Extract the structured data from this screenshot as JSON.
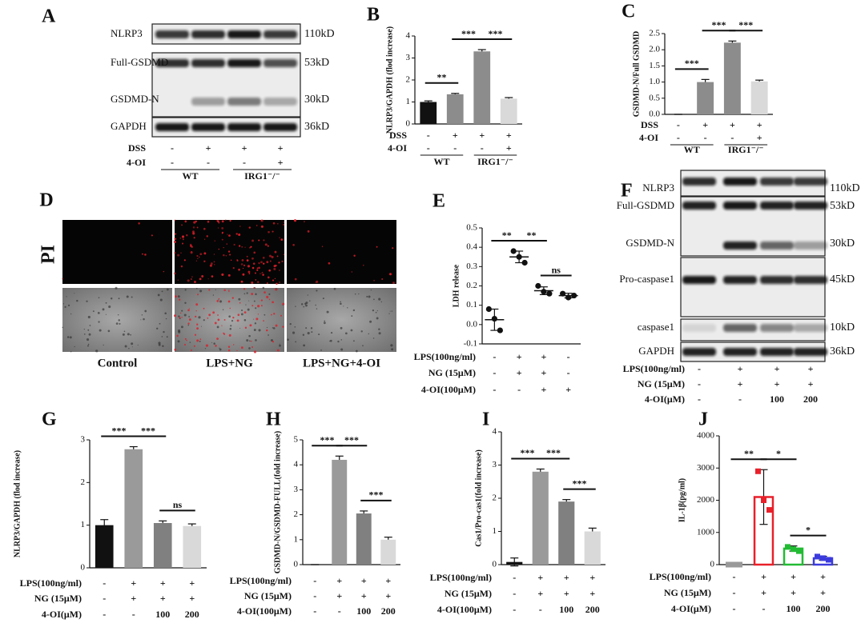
{
  "blots": [
    {
      "panel": "A",
      "bands": [
        {
          "name": "NLRP3",
          "size": "110kD"
        },
        {
          "name": "Full-GSDMD",
          "size": "53kD"
        },
        {
          "name": "GSDMD-N",
          "size": "30kD"
        },
        {
          "name": "GAPDH",
          "size": "36kD"
        }
      ],
      "treatments": [
        {
          "name": "DSS",
          "values": [
            "-",
            "+",
            "+",
            "+"
          ]
        },
        {
          "name": "4-OI",
          "values": [
            "-",
            "-",
            "-",
            "+"
          ]
        }
      ],
      "groups": [
        "WT",
        "IRG1⁻/⁻"
      ]
    },
    {
      "panel": "F",
      "bands": [
        {
          "name": "NLRP3",
          "size": "110kD"
        },
        {
          "name": "Full-GSDMD",
          "size": "53kD"
        },
        {
          "name": "GSDMD-N",
          "size": "30kD"
        },
        {
          "name": "Pro-caspase1",
          "size": "45kD"
        },
        {
          "name": "caspase1",
          "size": "10kD"
        },
        {
          "name": "GAPDH",
          "size": "36kD"
        }
      ],
      "treatments": [
        {
          "name": "LPS(100ng/ml)",
          "values": [
            "-",
            "+",
            "+",
            "+"
          ]
        },
        {
          "name": "NG (15μM)",
          "values": [
            "-",
            "+",
            "+",
            "+"
          ]
        },
        {
          "name": "4-OI(μM)",
          "values": [
            "-",
            "-",
            "100",
            "200"
          ]
        }
      ]
    }
  ],
  "micrographs": {
    "panel": "D",
    "stain": "PI",
    "captions": [
      "Control",
      "LPS+NG",
      "LPS+NG+4-OI"
    ]
  },
  "chart_data": [
    {
      "type": "bar",
      "panel": "B",
      "y_label": "NLRP3/GAPDH (flod increase)",
      "ylim": [
        0,
        4
      ],
      "yticks": [
        0,
        1,
        2,
        3,
        4
      ],
      "colors": [
        "#111111",
        "#8c8c8c",
        "#8c8c8c",
        "#d9d9d9"
      ],
      "values": [
        1.0,
        1.35,
        3.3,
        1.15
      ],
      "errors": [
        0.05,
        0.04,
        0.08,
        0.05
      ],
      "significance": [
        "**",
        "***",
        "***"
      ],
      "treatments": [
        {
          "name": "DSS",
          "values": [
            "-",
            "+",
            "+",
            "+"
          ]
        },
        {
          "name": "4-OI",
          "values": [
            "-",
            "-",
            "-",
            "+"
          ]
        }
      ],
      "groups": [
        "WT",
        "IRG1⁻/⁻"
      ]
    },
    {
      "type": "bar",
      "panel": "C",
      "y_label": "GSDMD-N/Full GSDMD",
      "ylim": [
        0,
        2.5
      ],
      "yticks": [
        {
          "value": 0,
          "label": "0.0"
        },
        0.5,
        {
          "value": 1,
          "label": "1.0"
        },
        1.5,
        {
          "value": 2,
          "label": "2.0"
        },
        2.5
      ],
      "colors": [
        "#111111",
        "#8c8c8c",
        "#8c8c8c",
        "#d9d9d9"
      ],
      "values": [
        0,
        1.0,
        2.22,
        1.02
      ],
      "errors": [
        0,
        0.08,
        0.05,
        0.04
      ],
      "significance": [
        "***",
        "***",
        "***"
      ],
      "treatments": [
        {
          "name": "DSS",
          "values": [
            "-",
            "+",
            "+",
            "+"
          ]
        },
        {
          "name": "4-OI",
          "values": [
            "-",
            "-",
            "-",
            "+"
          ]
        }
      ],
      "groups": [
        "WT",
        "IRG1⁻/⁻"
      ]
    },
    {
      "type": "dot",
      "panel": "E",
      "y_label": "LDH release",
      "ylim": [
        -0.1,
        0.5
      ],
      "yticks": [
        -0.1,
        {
          "value": 0,
          "label": "0.0"
        },
        0.1,
        0.2,
        0.3,
        0.4,
        0.5
      ],
      "colors": [
        "#111111",
        "#111111",
        "#111111",
        "#111111"
      ],
      "values": [
        0.025,
        0.35,
        0.175,
        0.15
      ],
      "errors": [
        0.055,
        0.03,
        0.02,
        0.012
      ],
      "points": [
        [
          0.08,
          0.03,
          -0.03
        ],
        [
          0.38,
          0.35,
          0.32
        ],
        [
          0.2,
          0.17,
          0.16
        ],
        [
          0.16,
          0.14,
          0.15
        ]
      ],
      "significance": [
        "**",
        "**",
        "ns"
      ],
      "treatments": [
        {
          "name": "LPS(100ng/ml)",
          "values": [
            "-",
            "+",
            "+",
            "-"
          ]
        },
        {
          "name": "NG (15μM)",
          "values": [
            "-",
            "+",
            "+",
            "-"
          ]
        },
        {
          "name": "4-OI(100μM)",
          "values": [
            "-",
            "-",
            "+",
            "+"
          ]
        }
      ]
    },
    {
      "type": "bar",
      "panel": "G",
      "y_label": "NLRP3/GAPDH (flod increase)",
      "ylim": [
        0,
        3
      ],
      "yticks": [
        0,
        1,
        2,
        3
      ],
      "colors": [
        "#111111",
        "#9a9a9a",
        "#808080",
        "#d9d9d9"
      ],
      "values": [
        1.0,
        2.78,
        1.05,
        0.98
      ],
      "errors": [
        0.13,
        0.06,
        0.05,
        0.05
      ],
      "significance": [
        "***",
        "***",
        "ns"
      ],
      "treatments": [
        {
          "name": "LPS(100ng/ml)",
          "values": [
            "-",
            "+",
            "+",
            "+"
          ]
        },
        {
          "name": "NG (15μM)",
          "values": [
            "-",
            "+",
            "+",
            "+"
          ]
        },
        {
          "name": "4-OI(μM)",
          "values": [
            "-",
            "-",
            "100",
            "200"
          ]
        }
      ]
    },
    {
      "type": "bar",
      "panel": "H",
      "y_label": "GSDMD-N/GSDMD-FULL(fold increase)",
      "ylim": [
        0,
        5
      ],
      "yticks": [
        0,
        1,
        2,
        3,
        4,
        5
      ],
      "colors": [
        "#111111",
        "#9a9a9a",
        "#808080",
        "#d9d9d9"
      ],
      "values": [
        0,
        4.2,
        2.05,
        1.0
      ],
      "errors": [
        0,
        0.15,
        0.1,
        0.1
      ],
      "significance": [
        "***",
        "***",
        "***"
      ],
      "treatments": [
        {
          "name": "LPS(100ng/ml)",
          "values": [
            "-",
            "+",
            "+",
            "+"
          ]
        },
        {
          "name": "NG (15μM)",
          "values": [
            "-",
            "+",
            "+",
            "+"
          ]
        },
        {
          "name": "4-OI(100μM)",
          "values": [
            "-",
            "-",
            "100",
            "200"
          ]
        }
      ]
    },
    {
      "type": "bar",
      "panel": "I",
      "y_label": "Cas1/Pro-cas1(fold increase)",
      "ylim": [
        0,
        4
      ],
      "yticks": [
        0,
        1,
        2,
        3,
        4
      ],
      "colors": [
        "#111111",
        "#9a9a9a",
        "#808080",
        "#d9d9d9"
      ],
      "values": [
        0.08,
        2.8,
        1.9,
        1.0
      ],
      "errors": [
        0.12,
        0.08,
        0.06,
        0.1
      ],
      "significance": [
        "***",
        "***",
        "***"
      ],
      "treatments": [
        {
          "name": "LPS(100ng/ml)",
          "values": [
            "-",
            "+",
            "+",
            "+"
          ]
        },
        {
          "name": "NG (15μM)",
          "values": [
            "-",
            "+",
            "+",
            "+"
          ]
        },
        {
          "name": "4-OI(100μM)",
          "values": [
            "-",
            "-",
            "100",
            "200"
          ]
        }
      ]
    },
    {
      "type": "bar",
      "panel": "J",
      "y_label": "IL-1β(pg/ml)",
      "ylim": [
        0,
        4000
      ],
      "yticks": [
        0,
        1000,
        2000,
        3000,
        4000
      ],
      "bar_style": "outline",
      "colors": [
        "#999999",
        "#e8202a",
        "#22bb33",
        "#3b3bdd"
      ],
      "values": [
        0,
        2100,
        500,
        200
      ],
      "errors": [
        0,
        850,
        80,
        60
      ],
      "points": [
        [
          0,
          0,
          0
        ],
        [
          2900,
          2000,
          1700
        ],
        [
          550,
          480,
          420
        ],
        [
          250,
          200,
          150
        ]
      ],
      "significance": [
        "**",
        "*",
        "*"
      ],
      "treatments": [
        {
          "name": "LPS(100ng/ml)",
          "values": [
            "-",
            "+",
            "+",
            "+"
          ]
        },
        {
          "name": "NG (15μM)",
          "values": [
            "-",
            "+",
            "+",
            "+"
          ]
        },
        {
          "name": "4-OI(μM)",
          "values": [
            "-",
            "-",
            "100",
            "200"
          ]
        }
      ]
    }
  ]
}
